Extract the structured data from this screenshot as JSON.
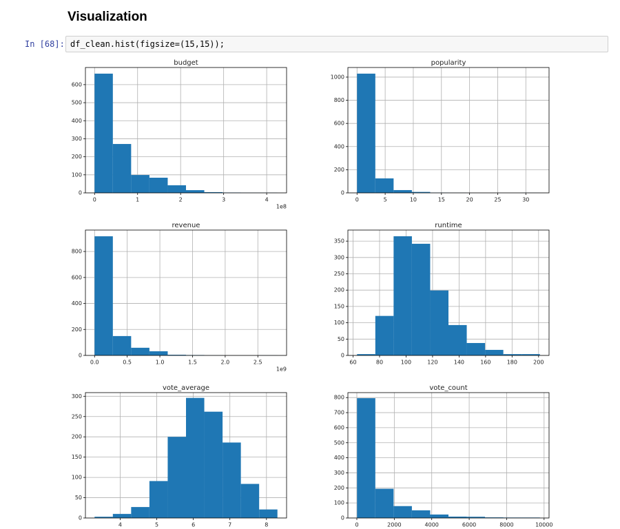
{
  "heading": "Visualization",
  "cell": {
    "prompt": "In [68]:",
    "code": "df_clean.hist(figsize=(15,15));"
  },
  "chart_data": [
    {
      "type": "histogram",
      "title": "budget",
      "color": "#1f77b4",
      "grid": true,
      "offset_label": "1e8",
      "bins": [
        0,
        42500000,
        85000000,
        127500000,
        170000000,
        212500000,
        255000000,
        297500000,
        340000000,
        382500000,
        425000000
      ],
      "counts": [
        661,
        271,
        99,
        84,
        42,
        15,
        4,
        2,
        1,
        1
      ],
      "xlim": [
        -21250000,
        446250000
      ],
      "ylim": [
        0,
        695
      ],
      "xticks": [
        0,
        {
          "value": 100000000,
          "label": "1"
        },
        {
          "value": 200000000,
          "label": "2"
        },
        {
          "value": 300000000,
          "label": "3"
        },
        {
          "value": 400000000,
          "label": "4"
        }
      ],
      "yticks": [
        0,
        100,
        200,
        300,
        400,
        500,
        600
      ]
    },
    {
      "type": "histogram",
      "title": "popularity",
      "color": "#1f77b4",
      "grid": true,
      "bins": [
        0,
        3.25,
        6.5,
        9.75,
        13,
        16.25,
        19.5,
        22.75,
        26,
        29.25,
        32.5
      ],
      "counts": [
        1030,
        125,
        24,
        8,
        2,
        1,
        0,
        0,
        0,
        1
      ],
      "xlim": [
        -1.625,
        34.125
      ],
      "ylim": [
        0,
        1083
      ],
      "xticks": [
        0,
        5,
        10,
        15,
        20,
        25,
        30
      ],
      "yticks": [
        0,
        200,
        400,
        600,
        800,
        1000
      ]
    },
    {
      "type": "histogram",
      "title": "revenue",
      "color": "#1f77b4",
      "grid": true,
      "offset_label": "1e9",
      "bins": [
        0,
        280000000,
        560000000,
        840000000,
        1120000000,
        1400000000,
        1680000000,
        1960000000,
        2240000000,
        2520000000,
        2800000000
      ],
      "counts": [
        917,
        149,
        59,
        32,
        5,
        3,
        1,
        0,
        0,
        1
      ],
      "xlim": [
        -140000000,
        2940000000
      ],
      "ylim": [
        0,
        965
      ],
      "xticks": [
        {
          "value": 0,
          "label": "0.0"
        },
        {
          "value": 500000000,
          "label": "0.5"
        },
        {
          "value": 1000000000,
          "label": "1.0"
        },
        {
          "value": 1500000000,
          "label": "1.5"
        },
        {
          "value": 2000000000,
          "label": "2.0"
        },
        {
          "value": 2500000000,
          "label": "2.5"
        }
      ],
      "yticks": [
        0,
        200,
        400,
        600,
        800
      ]
    },
    {
      "type": "histogram",
      "title": "runtime",
      "color": "#1f77b4",
      "grid": true,
      "bins": [
        63,
        76.8,
        90.6,
        104.4,
        118.2,
        132,
        145.8,
        159.6,
        173.4,
        187.2,
        201
      ],
      "counts": [
        4,
        121,
        365,
        342,
        199,
        93,
        38,
        17,
        4,
        4
      ],
      "xlim": [
        56.1,
        207.9
      ],
      "ylim": [
        0,
        384
      ],
      "xticks": [
        60,
        80,
        100,
        120,
        140,
        160,
        180,
        200
      ],
      "yticks": [
        0,
        50,
        100,
        150,
        200,
        250,
        300,
        350
      ]
    },
    {
      "type": "histogram",
      "title": "vote_average",
      "color": "#1f77b4",
      "grid": true,
      "bins": [
        3.3,
        3.8,
        4.3,
        4.8,
        5.3,
        5.8,
        6.3,
        6.8,
        7.3,
        7.8,
        8.3
      ],
      "counts": [
        3,
        10,
        27,
        91,
        200,
        296,
        262,
        186,
        84,
        21
      ],
      "xlim": [
        3.05,
        8.55
      ],
      "ylim": [
        0,
        309
      ],
      "xticks": [
        4,
        5,
        6,
        7,
        8
      ],
      "yticks": [
        0,
        50,
        100,
        150,
        200,
        250,
        300
      ]
    },
    {
      "type": "histogram",
      "title": "vote_count",
      "color": "#1f77b4",
      "grid": true,
      "bins": [
        10,
        987,
        1963,
        2940,
        3917,
        4893,
        5870,
        6847,
        7823,
        8800,
        9777
      ],
      "counts": [
        796,
        194,
        79,
        51,
        23,
        9,
        8,
        4,
        3,
        3
      ],
      "xlim": [
        -478,
        10265
      ],
      "ylim": [
        0,
        833
      ],
      "xticks": [
        0,
        2000,
        4000,
        6000,
        8000,
        10000
      ],
      "yticks": [
        0,
        100,
        200,
        300,
        400,
        500,
        600,
        700,
        800
      ]
    }
  ]
}
